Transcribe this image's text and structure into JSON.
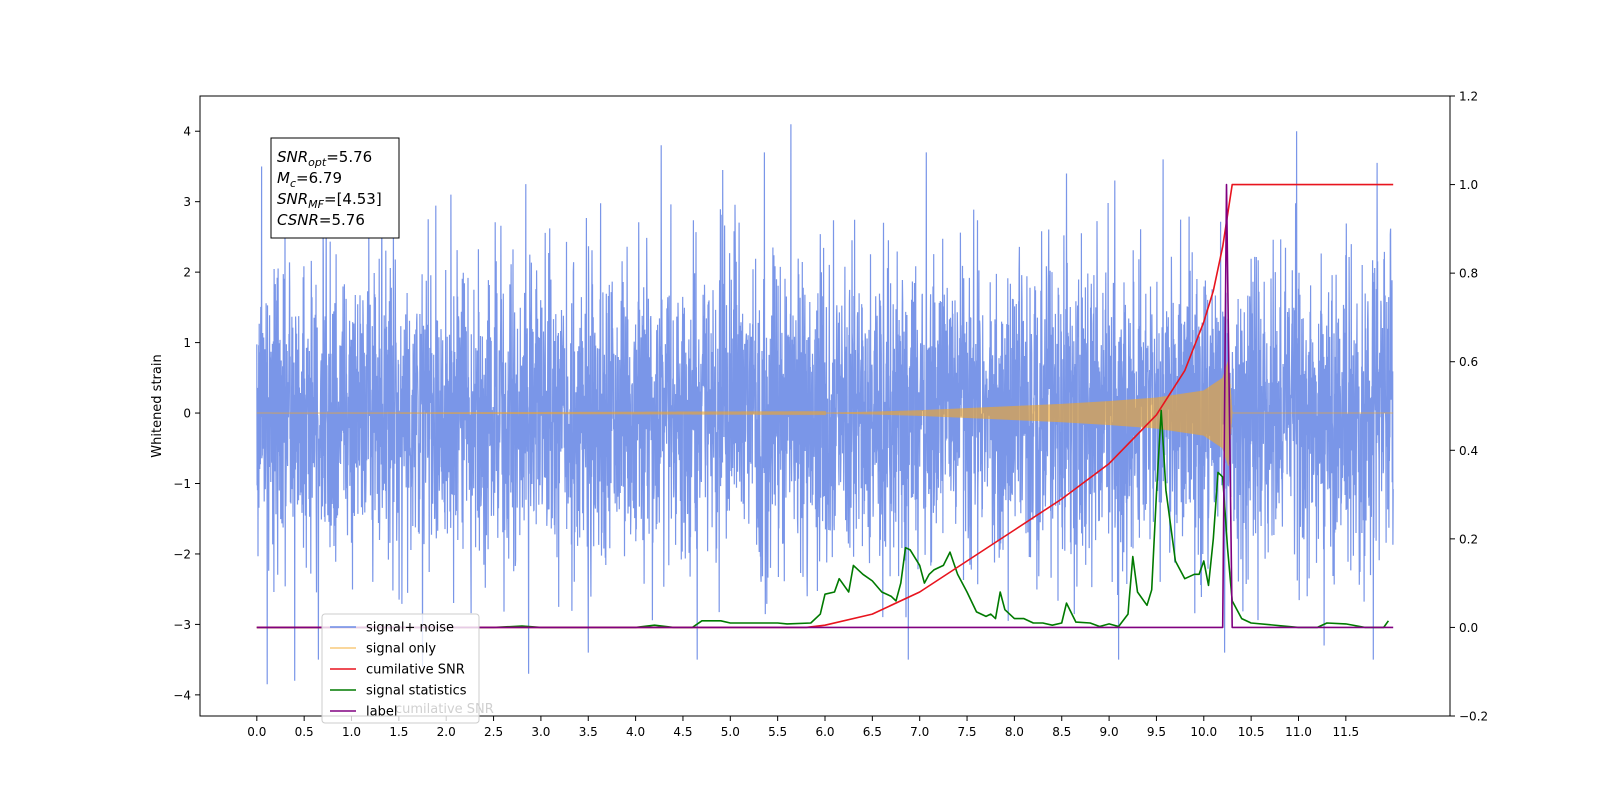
{
  "chart_data": {
    "type": "line",
    "xlabel": "",
    "ylabel": "Whitened strain",
    "xlim": [
      -0.6,
      12.6
    ],
    "ylim_left": [
      -4.3,
      4.5
    ],
    "ylim_right": [
      -0.2,
      1.2
    ],
    "x_ticks": [
      0.0,
      0.5,
      1.0,
      1.5,
      2.0,
      2.5,
      3.0,
      3.5,
      4.0,
      4.5,
      5.0,
      5.5,
      6.0,
      6.5,
      7.0,
      7.5,
      8.0,
      8.5,
      9.0,
      9.5,
      10.0,
      10.5,
      11.0,
      11.5
    ],
    "x_tick_labels": [
      "0.0",
      "0.5",
      "1.0",
      "1.5",
      "2.0",
      "2.5",
      "3.0",
      "3.5",
      "4.0",
      "4.5",
      "5.0",
      "5.5",
      "6.0",
      "6.5",
      "7.0",
      "7.5",
      "8.0",
      "8.5",
      "9.0",
      "9.5",
      "10.0",
      "10.5",
      "11.0",
      "11.5"
    ],
    "y_left_ticks": [
      4,
      3,
      2,
      1,
      0,
      -1,
      -2,
      -3,
      -4
    ],
    "y_left_tick_labels": [
      "4",
      "3",
      "2",
      "1",
      "0",
      "−1",
      "−2",
      "−3",
      "−4"
    ],
    "y_right_ticks": [
      1.2,
      1.0,
      0.8,
      0.6,
      0.4,
      0.2,
      0.0,
      -0.2
    ],
    "y_right_tick_labels": [
      "1.2",
      "1.0",
      "0.8",
      "0.6",
      "0.4",
      "0.2",
      "0.0",
      "−0.2"
    ],
    "grid": false,
    "legend_position": "lower-left",
    "annotation": {
      "lines": [
        {
          "base": "SNR",
          "sub": "opt",
          "rest": "=5.76"
        },
        {
          "base": "M",
          "sub": "c",
          "rest": "=6.79"
        },
        {
          "base": "SNR",
          "sub": "MF",
          "rest": "=[4.53]"
        },
        {
          "base": "CSNR",
          "sub": "",
          "rest": "=5.76"
        }
      ]
    },
    "series": [
      {
        "name": "signal+ noise",
        "axis": "left",
        "color": "#6b8be6",
        "x_range": [
          0.0,
          12.0
        ],
        "noise_std": 1.05,
        "spikes": [
          [
            0.05,
            3.5
          ],
          [
            0.11,
            -3.85
          ],
          [
            0.4,
            -3.8
          ],
          [
            0.65,
            -3.5
          ],
          [
            1.32,
            3.3
          ],
          [
            1.75,
            -3.6
          ],
          [
            2.05,
            3.1
          ],
          [
            2.84,
            3.25
          ],
          [
            2.87,
            -3.7
          ],
          [
            3.5,
            -3.4
          ],
          [
            4.27,
            3.8
          ],
          [
            4.65,
            -3.5
          ],
          [
            4.92,
            3.45
          ],
          [
            5.36,
            3.7
          ],
          [
            5.64,
            4.1
          ],
          [
            6.88,
            -3.5
          ],
          [
            7.07,
            3.7
          ],
          [
            8.55,
            3.4
          ],
          [
            9.06,
            3.3
          ],
          [
            9.1,
            -3.5
          ],
          [
            9.57,
            3.6
          ],
          [
            10.22,
            -3.4
          ],
          [
            10.98,
            4.0
          ],
          [
            11.27,
            -3.3
          ],
          [
            11.79,
            -3.5
          ],
          [
            11.83,
            3.55
          ]
        ]
      },
      {
        "name": "signal only",
        "axis": "left",
        "color": "#f5a623",
        "x_range": [
          0.0,
          12.0
        ],
        "envelope": [
          [
            0.0,
            0.0
          ],
          [
            6.0,
            0.005
          ],
          [
            6.5,
            0.02
          ],
          [
            7.0,
            0.04
          ],
          [
            7.5,
            0.07
          ],
          [
            8.0,
            0.1
          ],
          [
            8.5,
            0.13
          ],
          [
            9.0,
            0.17
          ],
          [
            9.5,
            0.22
          ],
          [
            10.0,
            0.32
          ],
          [
            10.2,
            0.5
          ],
          [
            10.26,
            0.75
          ],
          [
            10.3,
            0.0
          ],
          [
            12.0,
            0.0
          ]
        ]
      },
      {
        "name": "cumilative SNR",
        "axis": "right",
        "color": "#e8141e",
        "points": [
          [
            0.0,
            0.0
          ],
          [
            5.8,
            0.0
          ],
          [
            6.0,
            0.005
          ],
          [
            6.5,
            0.03
          ],
          [
            7.0,
            0.08
          ],
          [
            7.5,
            0.15
          ],
          [
            8.0,
            0.22
          ],
          [
            8.5,
            0.29
          ],
          [
            9.0,
            0.37
          ],
          [
            9.5,
            0.48
          ],
          [
            9.8,
            0.58
          ],
          [
            10.0,
            0.69
          ],
          [
            10.1,
            0.76
          ],
          [
            10.2,
            0.86
          ],
          [
            10.3,
            1.0
          ],
          [
            12.0,
            1.0
          ]
        ]
      },
      {
        "name": "signal statistics",
        "axis": "right",
        "color": "#007a00",
        "points": [
          [
            0.0,
            0.0
          ],
          [
            2.5,
            0.0
          ],
          [
            2.8,
            0.003
          ],
          [
            3.0,
            0.0
          ],
          [
            4.0,
            0.0
          ],
          [
            4.2,
            0.005
          ],
          [
            4.4,
            0.0
          ],
          [
            4.6,
            0.0
          ],
          [
            4.7,
            0.015
          ],
          [
            4.9,
            0.015
          ],
          [
            5.0,
            0.01
          ],
          [
            5.5,
            0.01
          ],
          [
            5.6,
            0.008
          ],
          [
            5.85,
            0.01
          ],
          [
            5.95,
            0.03
          ],
          [
            6.0,
            0.075
          ],
          [
            6.1,
            0.08
          ],
          [
            6.15,
            0.11
          ],
          [
            6.25,
            0.08
          ],
          [
            6.3,
            0.14
          ],
          [
            6.4,
            0.12
          ],
          [
            6.5,
            0.105
          ],
          [
            6.6,
            0.08
          ],
          [
            6.7,
            0.07
          ],
          [
            6.75,
            0.06
          ],
          [
            6.8,
            0.1
          ],
          [
            6.85,
            0.18
          ],
          [
            6.9,
            0.175
          ],
          [
            7.0,
            0.14
          ],
          [
            7.05,
            0.1
          ],
          [
            7.1,
            0.12
          ],
          [
            7.15,
            0.13
          ],
          [
            7.25,
            0.14
          ],
          [
            7.32,
            0.17
          ],
          [
            7.4,
            0.12
          ],
          [
            7.5,
            0.08
          ],
          [
            7.6,
            0.035
          ],
          [
            7.7,
            0.025
          ],
          [
            7.75,
            0.03
          ],
          [
            7.8,
            0.02
          ],
          [
            7.85,
            0.08
          ],
          [
            7.9,
            0.04
          ],
          [
            8.0,
            0.02
          ],
          [
            8.1,
            0.02
          ],
          [
            8.2,
            0.01
          ],
          [
            8.3,
            0.01
          ],
          [
            8.4,
            0.005
          ],
          [
            8.5,
            0.01
          ],
          [
            8.55,
            0.055
          ],
          [
            8.65,
            0.012
          ],
          [
            8.8,
            0.01
          ],
          [
            8.9,
            0.002
          ],
          [
            9.0,
            0.008
          ],
          [
            9.1,
            0.002
          ],
          [
            9.2,
            0.03
          ],
          [
            9.25,
            0.16
          ],
          [
            9.3,
            0.08
          ],
          [
            9.4,
            0.05
          ],
          [
            9.45,
            0.085
          ],
          [
            9.5,
            0.3
          ],
          [
            9.55,
            0.49
          ],
          [
            9.6,
            0.31
          ],
          [
            9.7,
            0.15
          ],
          [
            9.8,
            0.11
          ],
          [
            9.9,
            0.12
          ],
          [
            9.95,
            0.12
          ],
          [
            10.0,
            0.15
          ],
          [
            10.05,
            0.095
          ],
          [
            10.1,
            0.2
          ],
          [
            10.15,
            0.35
          ],
          [
            10.2,
            0.34
          ],
          [
            10.25,
            0.18
          ],
          [
            10.3,
            0.06
          ],
          [
            10.4,
            0.02
          ],
          [
            10.5,
            0.01
          ],
          [
            11.0,
            0.0
          ],
          [
            11.2,
            0.0
          ],
          [
            11.3,
            0.01
          ],
          [
            11.5,
            0.008
          ],
          [
            11.7,
            0.0
          ],
          [
            11.9,
            0.0
          ],
          [
            11.95,
            0.015
          ]
        ]
      },
      {
        "name": "label",
        "axis": "right",
        "color": "#800080",
        "points": [
          [
            0.0,
            0.0
          ],
          [
            10.2,
            0.0
          ],
          [
            10.24,
            1.0
          ],
          [
            10.3,
            0.0
          ],
          [
            12.0,
            0.0
          ]
        ]
      }
    ],
    "legend_hidden_text": "cumilative SNR"
  }
}
